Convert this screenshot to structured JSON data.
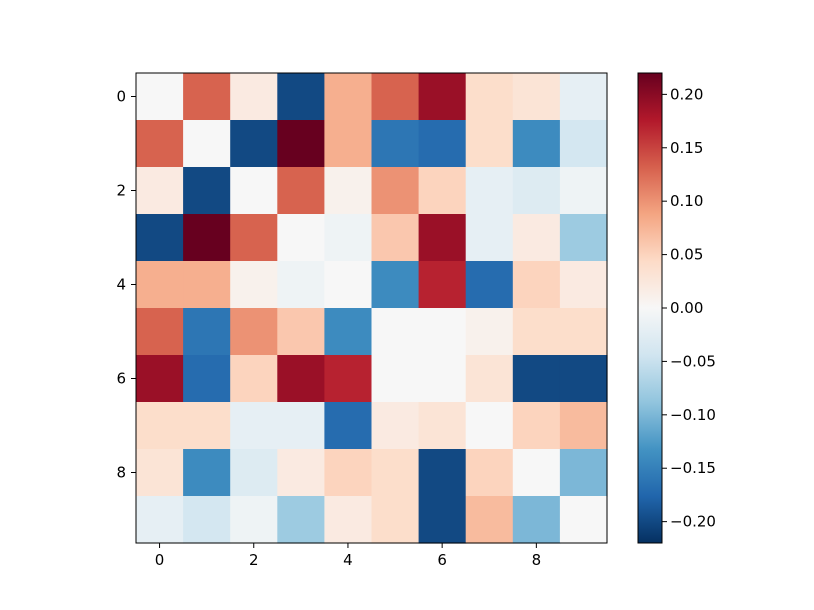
{
  "chart_data": {
    "type": "heatmap",
    "title": "",
    "xlabel": "",
    "ylabel": "",
    "colormap": "RdBu_r",
    "vmin": -0.22,
    "vmax": 0.22,
    "x_ticks": [
      "0",
      "2",
      "4",
      "6",
      "8"
    ],
    "y_ticks": [
      "0",
      "2",
      "4",
      "6",
      "8"
    ],
    "colorbar_ticks": [
      "0.20",
      "0.15",
      "0.10",
      "0.05",
      "0.00",
      "−0.05",
      "−0.10",
      "−0.15",
      "−0.20"
    ],
    "matrix": [
      [
        0.0,
        0.13,
        0.02,
        -0.2,
        0.08,
        0.13,
        0.19,
        0.04,
        0.03,
        -0.02
      ],
      [
        0.13,
        0.0,
        -0.2,
        0.22,
        0.08,
        -0.16,
        -0.17,
        0.04,
        -0.14,
        -0.04
      ],
      [
        0.02,
        -0.2,
        0.0,
        0.13,
        0.01,
        0.1,
        0.05,
        -0.02,
        -0.03,
        -0.01
      ],
      [
        -0.2,
        0.22,
        0.13,
        0.0,
        -0.01,
        0.06,
        0.19,
        -0.02,
        0.02,
        -0.08
      ],
      [
        0.08,
        0.08,
        0.01,
        -0.01,
        0.0,
        -0.14,
        0.17,
        -0.17,
        0.05,
        0.02
      ],
      [
        0.13,
        -0.16,
        0.1,
        0.06,
        -0.14,
        0.0,
        0.0,
        0.01,
        0.04,
        0.04
      ],
      [
        0.19,
        -0.17,
        0.05,
        0.19,
        0.17,
        0.0,
        0.0,
        0.03,
        -0.2,
        -0.2
      ],
      [
        0.04,
        0.04,
        -0.02,
        -0.02,
        -0.17,
        0.02,
        0.03,
        0.0,
        0.05,
        0.07
      ],
      [
        0.03,
        -0.14,
        -0.03,
        0.02,
        0.05,
        0.04,
        -0.2,
        0.05,
        0.0,
        -0.1
      ],
      [
        -0.02,
        -0.04,
        -0.01,
        -0.08,
        0.02,
        0.04,
        -0.2,
        0.07,
        -0.1,
        0.0
      ]
    ]
  }
}
